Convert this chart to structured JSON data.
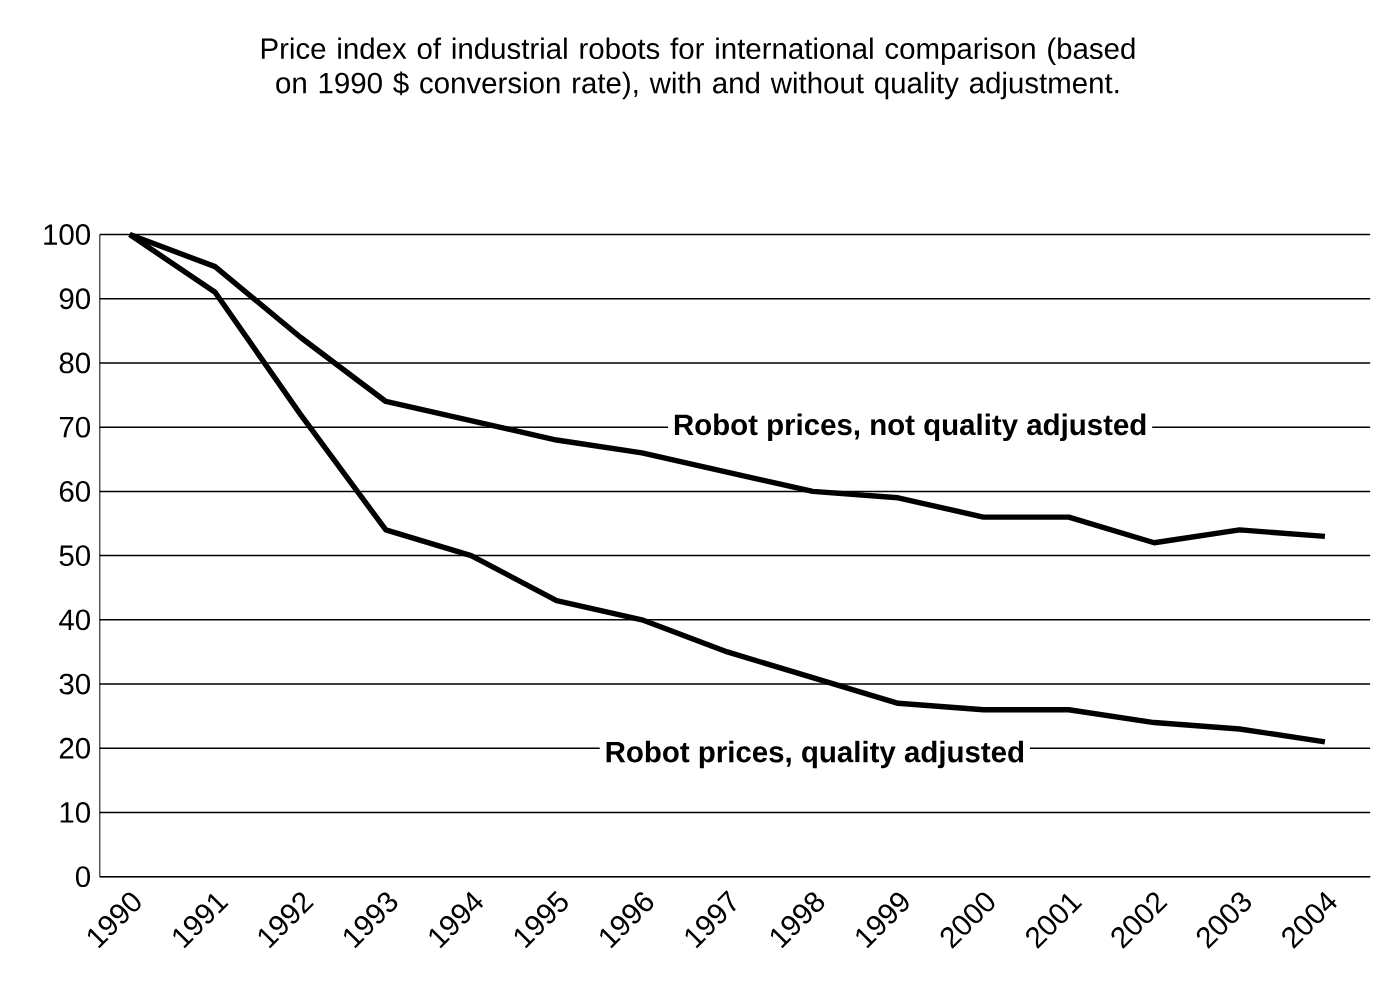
{
  "chart_data": {
    "type": "line",
    "title": "Price index of industrial robots for international comparison (based on 1990 $ conversion rate), with and without quality adjustment.",
    "categories": [
      "1990",
      "1991",
      "1992",
      "1993",
      "1994",
      "1995",
      "1996",
      "1997",
      "1998",
      "1999",
      "2000",
      "2001",
      "2002",
      "2003",
      "2004"
    ],
    "series": [
      {
        "name": "Robot prices, not quality adjusted",
        "color": "#000000",
        "values": [
          100,
          95,
          84,
          74,
          71,
          68,
          66,
          63,
          60,
          59,
          56,
          56,
          52,
          54,
          53
        ]
      },
      {
        "name": "Robot prices, quality adjusted",
        "color": "#000000",
        "values": [
          100,
          91,
          72,
          54,
          50,
          43,
          40,
          35,
          31,
          27,
          26,
          26,
          24,
          23,
          21
        ]
      }
    ],
    "ylim": [
      0,
      100
    ],
    "yticks": [
      0,
      10,
      20,
      30,
      40,
      50,
      60,
      70,
      80,
      90,
      100
    ],
    "grid": "y"
  }
}
